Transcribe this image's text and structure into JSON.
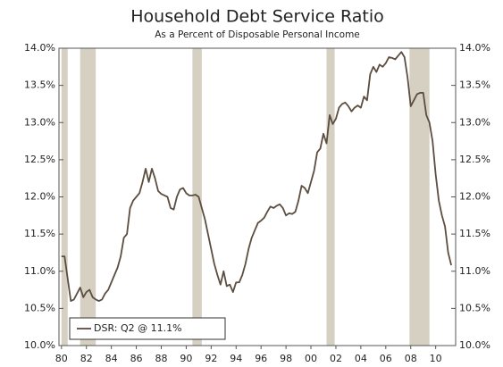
{
  "chart_data": {
    "type": "line",
    "title": "Household Debt Service Ratio",
    "subtitle": "As a Percent of Disposable Personal Income",
    "x": [
      1980,
      1980.25,
      1980.5,
      1980.75,
      1981,
      1981.25,
      1981.5,
      1981.75,
      1982,
      1982.25,
      1982.5,
      1982.75,
      1983,
      1983.25,
      1983.5,
      1983.75,
      1984,
      1984.25,
      1984.5,
      1984.75,
      1985,
      1985.25,
      1985.5,
      1985.75,
      1986,
      1986.25,
      1986.5,
      1986.75,
      1987,
      1987.25,
      1987.5,
      1987.75,
      1988,
      1988.25,
      1988.5,
      1988.75,
      1989,
      1989.25,
      1989.5,
      1989.75,
      1990,
      1990.25,
      1990.5,
      1990.75,
      1991,
      1991.25,
      1991.5,
      1991.75,
      1992,
      1992.25,
      1992.5,
      1992.75,
      1993,
      1993.25,
      1993.5,
      1993.75,
      1994,
      1994.25,
      1994.5,
      1994.75,
      1995,
      1995.25,
      1995.5,
      1995.75,
      1996,
      1996.25,
      1996.5,
      1996.75,
      1997,
      1997.25,
      1997.5,
      1997.75,
      1998,
      1998.25,
      1998.5,
      1998.75,
      1999,
      1999.25,
      1999.5,
      1999.75,
      2000,
      2000.25,
      2000.5,
      2000.75,
      2001,
      2001.25,
      2001.5,
      2001.75,
      2002,
      2002.25,
      2002.5,
      2002.75,
      2003,
      2003.25,
      2003.5,
      2003.75,
      2004,
      2004.25,
      2004.5,
      2004.75,
      2005,
      2005.25,
      2005.5,
      2005.75,
      2006,
      2006.25,
      2006.5,
      2006.75,
      2007,
      2007.25,
      2007.5,
      2007.75,
      2008,
      2008.25,
      2008.5,
      2008.75,
      2009,
      2009.25,
      2009.5,
      2009.75,
      2010,
      2010.25,
      2010.5,
      2010.75,
      2011,
      2011.25
    ],
    "series": [
      {
        "name": "DSR: Q2 @ 11.1%",
        "color": "#5b4d3f",
        "values": [
          11.2,
          11.2,
          10.9,
          10.6,
          10.62,
          10.7,
          10.78,
          10.65,
          10.72,
          10.75,
          10.65,
          10.62,
          10.6,
          10.62,
          10.7,
          10.75,
          10.85,
          10.95,
          11.05,
          11.2,
          11.45,
          11.5,
          11.85,
          11.95,
          12.0,
          12.05,
          12.2,
          12.38,
          12.2,
          12.38,
          12.25,
          12.08,
          12.04,
          12.02,
          12.0,
          11.85,
          11.83,
          12.0,
          12.1,
          12.12,
          12.05,
          12.02,
          12.02,
          12.03,
          12.0,
          11.85,
          11.7,
          11.5,
          11.3,
          11.1,
          10.95,
          10.82,
          11.0,
          10.8,
          10.82,
          10.72,
          10.85,
          10.85,
          10.95,
          11.1,
          11.3,
          11.45,
          11.55,
          11.65,
          11.68,
          11.72,
          11.8,
          11.87,
          11.85,
          11.88,
          11.9,
          11.85,
          11.75,
          11.78,
          11.77,
          11.8,
          11.95,
          12.15,
          12.12,
          12.05,
          12.2,
          12.35,
          12.6,
          12.65,
          12.85,
          12.72,
          13.1,
          12.98,
          13.05,
          13.2,
          13.25,
          13.27,
          13.22,
          13.15,
          13.2,
          13.23,
          13.2,
          13.35,
          13.3,
          13.65,
          13.75,
          13.68,
          13.78,
          13.75,
          13.8,
          13.88,
          13.87,
          13.85,
          13.9,
          13.95,
          13.88,
          13.6,
          13.22,
          13.3,
          13.38,
          13.4,
          13.4,
          13.1,
          13.0,
          12.75,
          12.3,
          11.95,
          11.75,
          11.6,
          11.25,
          11.08
        ]
      }
    ],
    "recessions": [
      [
        1980,
        1980.5
      ],
      [
        1981.5,
        1982.75
      ],
      [
        1990.5,
        1991.25
      ],
      [
        2001.25,
        2001.9
      ],
      [
        2007.9,
        2009.5
      ]
    ],
    "recession_color": "#d6d0c2",
    "xlim": [
      1979.8,
      2011.6
    ],
    "xticks": [
      {
        "value": 1980,
        "label": "80"
      },
      {
        "value": 1982,
        "label": "82"
      },
      {
        "value": 1984,
        "label": "84"
      },
      {
        "value": 1986,
        "label": "86"
      },
      {
        "value": 1988,
        "label": "88"
      },
      {
        "value": 1990,
        "label": "90"
      },
      {
        "value": 1992,
        "label": "92"
      },
      {
        "value": 1994,
        "label": "94"
      },
      {
        "value": 1996,
        "label": "96"
      },
      {
        "value": 1998,
        "label": "98"
      },
      {
        "value": 2000,
        "label": "00"
      },
      {
        "value": 2002,
        "label": "02"
      },
      {
        "value": 2004,
        "label": "04"
      },
      {
        "value": 2006,
        "label": "06"
      },
      {
        "value": 2008,
        "label": "08"
      },
      {
        "value": 2010,
        "label": "10"
      }
    ],
    "ylim": [
      10,
      14
    ],
    "yticks": [
      {
        "value": 10,
        "label": "10.0%"
      },
      {
        "value": 10.5,
        "label": "10.5%"
      },
      {
        "value": 11,
        "label": "11.0%"
      },
      {
        "value": 11.5,
        "label": "11.5%"
      },
      {
        "value": 12,
        "label": "12.0%"
      },
      {
        "value": 12.5,
        "label": "12.5%"
      },
      {
        "value": 13,
        "label": "13.0%"
      },
      {
        "value": 13.5,
        "label": "13.5%"
      },
      {
        "value": 14,
        "label": "14.0%"
      }
    ],
    "y2lim": [
      10,
      14
    ],
    "y2ticks": [
      {
        "value": 10,
        "label": "10.0%"
      },
      {
        "value": 10.5,
        "label": "10.5%"
      },
      {
        "value": 11,
        "label": "11.0%"
      },
      {
        "value": 11.5,
        "label": "11.5%"
      },
      {
        "value": 12,
        "label": "12.0%"
      },
      {
        "value": 12.5,
        "label": "12.5%"
      },
      {
        "value": 13,
        "label": "13.0%"
      },
      {
        "value": 13.5,
        "label": "13.5%"
      },
      {
        "value": 14,
        "label": "14.0%"
      }
    ],
    "legend": "lower left"
  }
}
